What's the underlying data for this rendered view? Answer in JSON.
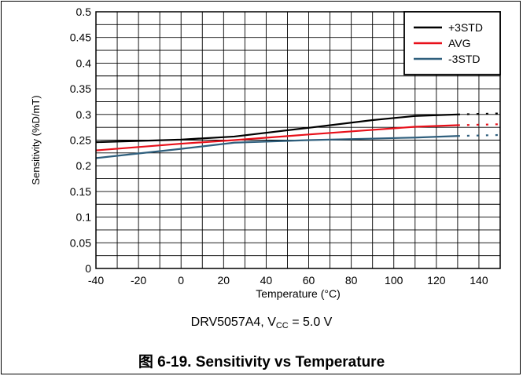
{
  "chart_data": {
    "type": "line",
    "xlabel": "Temperature (°C)",
    "ylabel": "Sensitivity (%D/mT)",
    "xlim": [
      -40,
      150
    ],
    "ylim": [
      0,
      0.5
    ],
    "x_ticks": [
      -40,
      -20,
      0,
      20,
      40,
      60,
      80,
      100,
      120,
      140
    ],
    "x_tick_labels": [
      "-40",
      "-20",
      "0",
      "20",
      "40",
      "60",
      "80",
      "100",
      "120",
      "140"
    ],
    "y_ticks": [
      0,
      0.05,
      0.1,
      0.15,
      0.2,
      0.25,
      0.3,
      0.35,
      0.4,
      0.45,
      0.5
    ],
    "y_tick_labels": [
      "0",
      "0.05",
      "0.1",
      "0.15",
      "0.2",
      "0.25",
      "0.3",
      "0.35",
      "0.4",
      "0.45",
      "0.5"
    ],
    "x_minor_step": 10,
    "y_minor_step": 0.025,
    "grid": true,
    "legend_position": "top-right",
    "series": [
      {
        "name": "+3STD",
        "color": "#000000",
        "x": [
          -40,
          0,
          25,
          60,
          90,
          110,
          130
        ],
        "y": [
          0.246,
          0.251,
          0.257,
          0.274,
          0.289,
          0.297,
          0.3
        ],
        "extrapolated": {
          "x": [
            130,
            150
          ],
          "y": [
            0.3,
            0.302
          ]
        }
      },
      {
        "name": "AVG",
        "color": "#e8101a",
        "x": [
          -40,
          0,
          25,
          60,
          90,
          110,
          130
        ],
        "y": [
          0.23,
          0.243,
          0.25,
          0.261,
          0.27,
          0.276,
          0.279
        ],
        "extrapolated": {
          "x": [
            130,
            150
          ],
          "y": [
            0.279,
            0.281
          ]
        }
      },
      {
        "name": "-3STD",
        "color": "#2f5f7d",
        "x": [
          -40,
          -20,
          0,
          25,
          60,
          90,
          110,
          130
        ],
        "y": [
          0.215,
          0.224,
          0.233,
          0.245,
          0.25,
          0.253,
          0.255,
          0.258
        ],
        "extrapolated": {
          "x": [
            130,
            150
          ],
          "y": [
            0.258,
            0.26
          ]
        }
      }
    ]
  },
  "device_caption": {
    "prefix": "DRV5057A4, V",
    "subscript": "CC",
    "suffix": " = 5.0 V"
  },
  "figure_caption": "图 6-19. Sensitivity vs Temperature"
}
